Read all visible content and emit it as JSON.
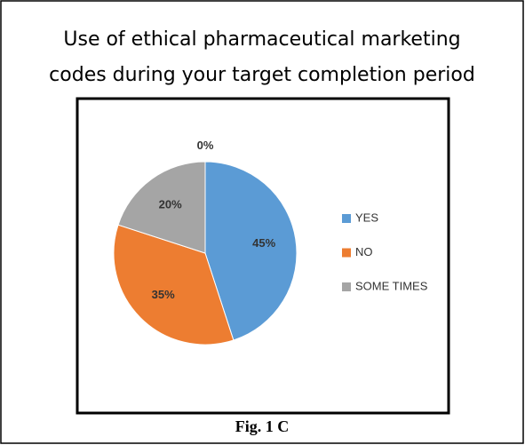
{
  "chart_data": {
    "type": "pie",
    "title": [
      "Use of ethical pharmaceutical marketing",
      "codes during your target completion period"
    ],
    "caption": "Fig. 1 C",
    "categories": [
      "YES",
      "NO",
      "SOME TIMES",
      null
    ],
    "values": [
      45,
      35,
      20,
      0
    ],
    "value_labels": [
      "45%",
      "35%",
      "20%",
      "0%"
    ],
    "colors": [
      "#5b9bd5",
      "#ed7d31",
      "#a5a5a5",
      "#ffc000"
    ],
    "legend": "right"
  }
}
